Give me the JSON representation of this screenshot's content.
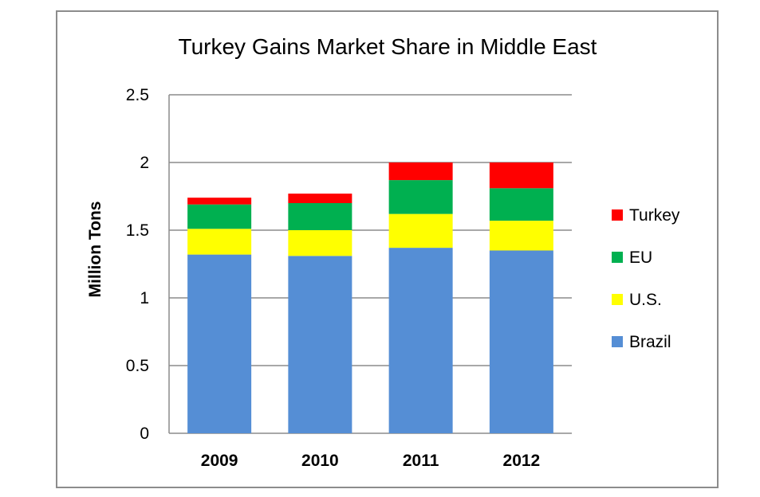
{
  "chart_data": {
    "type": "bar",
    "stacked": true,
    "title": "Turkey Gains Market Share in Middle East",
    "xlabel": "",
    "ylabel": "Million Tons",
    "ylim": [
      0,
      2.5
    ],
    "yticks": [
      "0",
      "0.5",
      "1",
      "1.5",
      "2",
      "2.5"
    ],
    "grid": true,
    "legend_position": "right",
    "categories": [
      "2009",
      "2010",
      "2011",
      "2012"
    ],
    "series": [
      {
        "name": "Brazil",
        "color": "#558ed5",
        "values": [
          1.32,
          1.31,
          1.37,
          1.35
        ]
      },
      {
        "name": "U.S.",
        "color": "#ffff00",
        "values": [
          0.19,
          0.19,
          0.25,
          0.22
        ]
      },
      {
        "name": "EU",
        "color": "#00b050",
        "values": [
          0.18,
          0.2,
          0.25,
          0.24
        ]
      },
      {
        "name": "Turkey",
        "color": "#ff0000",
        "values": [
          0.05,
          0.07,
          0.13,
          0.19
        ]
      }
    ]
  }
}
